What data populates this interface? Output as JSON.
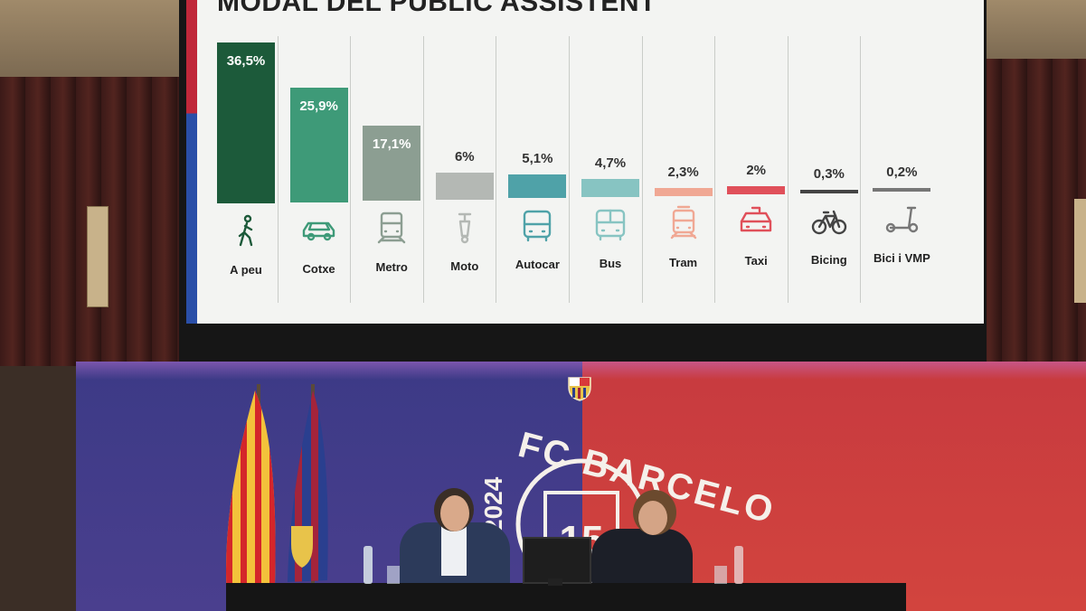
{
  "screen": {
    "title": "MODAL DEL PÚBLIC ASSISTENT",
    "items": [
      {
        "label": "A peu",
        "value": "36,5%",
        "v": 36.5,
        "color": "#1c5a3a",
        "icon": "pedestrian-icon",
        "inside": true
      },
      {
        "label": "Cotxe",
        "value": "25,9%",
        "v": 25.9,
        "color": "#3e9a78",
        "icon": "car-icon",
        "inside": true
      },
      {
        "label": "Metro",
        "value": "17,1%",
        "v": 17.1,
        "color": "#8c9e92",
        "icon": "metro-icon",
        "inside": true
      },
      {
        "label": "Moto",
        "value": "6%",
        "v": 6,
        "color": "#b4b8b4",
        "icon": "scooter-icon",
        "inside": false
      },
      {
        "label": "Autocar",
        "value": "5,1%",
        "v": 5.1,
        "color": "#4fa2a8",
        "icon": "coach-icon",
        "inside": false
      },
      {
        "label": "Bus",
        "value": "4,7%",
        "v": 4.7,
        "color": "#87c4c2",
        "icon": "bus-icon",
        "inside": false
      },
      {
        "label": "Tram",
        "value": "2,3%",
        "v": 2.3,
        "color": "#f0a894",
        "icon": "tram-icon",
        "inside": false
      },
      {
        "label": "Taxi",
        "value": "2%",
        "v": 2,
        "color": "#e0505a",
        "icon": "taxi-icon",
        "inside": false
      },
      {
        "label": "Bicing",
        "value": "0,3%",
        "v": 0.3,
        "color": "#444444",
        "icon": "bicycle-icon",
        "inside": false
      },
      {
        "label": "Bici i VMP",
        "value": "0,2%",
        "v": 0.2,
        "color": "#777777",
        "icon": "kick-scooter-icon",
        "inside": false
      }
    ]
  },
  "backdrop": {
    "club_name": "FC BARCELO",
    "year": "2024"
  }
}
